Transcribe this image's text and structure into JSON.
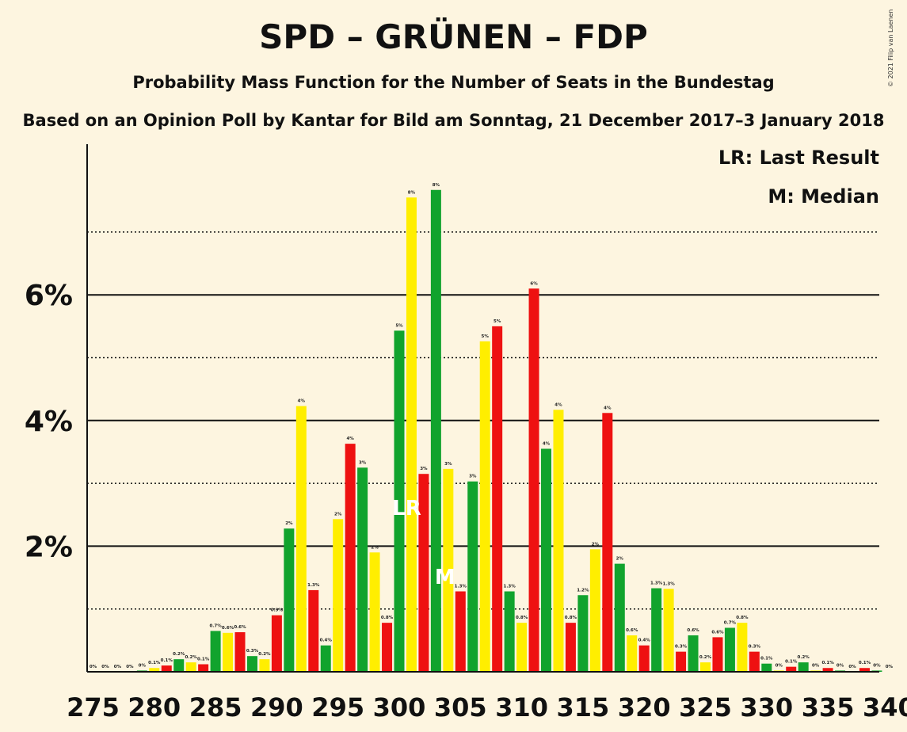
{
  "title": "SPD – GRÜNEN – FDP",
  "subtitle": "Probability Mass Function for the Number of Seats in the Bundestag",
  "subtitle2": "Based on an Opinion Poll by Kantar for Bild am Sonntag, 21 December 2017–3 January 2018",
  "copyright": "© 2021 Filip van Laenen",
  "legend": {
    "lr": "LR: Last Result",
    "m": "M: Median"
  },
  "markers": {
    "lr_label": "LR",
    "lr_seat": 301,
    "median_label": "M",
    "median_seat": 304
  },
  "colors": {
    "red": "#ee1111",
    "green": "#11a32d",
    "yellow": "#ffee00",
    "background": "#fdf5e0"
  },
  "chart_data": {
    "type": "bar",
    "x": [
      275,
      276,
      277,
      278,
      279,
      280,
      281,
      282,
      283,
      284,
      285,
      286,
      287,
      288,
      289,
      290,
      291,
      292,
      293,
      294,
      295,
      296,
      297,
      298,
      299,
      300,
      301,
      302,
      303,
      304,
      305,
      306,
      307,
      308,
      309,
      310,
      311,
      312,
      313,
      314,
      315,
      316,
      317,
      318,
      319,
      320,
      321,
      322,
      323,
      324,
      325,
      326,
      327,
      328,
      329,
      330,
      331,
      332,
      333,
      334,
      335,
      336,
      337,
      338,
      339,
      340
    ],
    "values": [
      0.0,
      0.0,
      0.0,
      0.0,
      0.02,
      0.06,
      0.1,
      0.2,
      0.15,
      0.12,
      0.65,
      0.62,
      0.63,
      0.25,
      0.2,
      0.9,
      2.28,
      4.23,
      1.3,
      0.42,
      2.43,
      3.63,
      3.25,
      1.9,
      0.78,
      5.43,
      7.55,
      3.15,
      7.67,
      3.23,
      1.28,
      3.03,
      5.26,
      5.5,
      1.28,
      0.78,
      6.1,
      3.55,
      4.17,
      0.78,
      1.22,
      1.95,
      4.12,
      1.72,
      0.58,
      0.42,
      1.33,
      1.32,
      0.32,
      0.58,
      0.15,
      0.55,
      0.7,
      0.78,
      0.32,
      0.13,
      0.02,
      0.08,
      0.15,
      0.02,
      0.06,
      0.02,
      0.0,
      0.06,
      0.02,
      0.0
    ],
    "data_labels": [
      "0%",
      "0%",
      "0%",
      "0%",
      "0%",
      "0.1%",
      "0.1%",
      "0.2%",
      "0.2%",
      "0.1%",
      "0.7%",
      "0.6%",
      "0.6%",
      "0.3%",
      "0.2%",
      "0.9%",
      "2%",
      "4%",
      "1.3%",
      "0.4%",
      "2%",
      "4%",
      "3%",
      "2%",
      "0.8%",
      "5%",
      "8%",
      "3%",
      "8%",
      "3%",
      "1.3%",
      "3%",
      "5%",
      "5%",
      "1.3%",
      "0.8%",
      "6%",
      "4%",
      "4%",
      "0.8%",
      "1.2%",
      "2%",
      "4%",
      "2%",
      "0.6%",
      "0.4%",
      "1.3%",
      "1.3%",
      "0.3%",
      "0.6%",
      "0.2%",
      "0.6%",
      "0.7%",
      "0.8%",
      "0.3%",
      "0.1%",
      "0%",
      "0.1%",
      "0.2%",
      "0%",
      "0.1%",
      "0%",
      "0%",
      "0.1%",
      "0%",
      "0%"
    ],
    "bar_colors": [
      "red",
      "green",
      "yellow"
    ],
    "x_ticks": [
      275,
      280,
      285,
      290,
      295,
      300,
      305,
      310,
      315,
      320,
      325,
      330,
      335,
      340
    ],
    "y_ticks_major": [
      2,
      4,
      6
    ],
    "y_tick_labels": [
      "2%",
      "4%",
      "6%"
    ],
    "y_ticks_minor": [
      1,
      3,
      5,
      7
    ],
    "ylim": [
      0,
      8.2
    ],
    "xlabel": "",
    "ylabel": ""
  }
}
